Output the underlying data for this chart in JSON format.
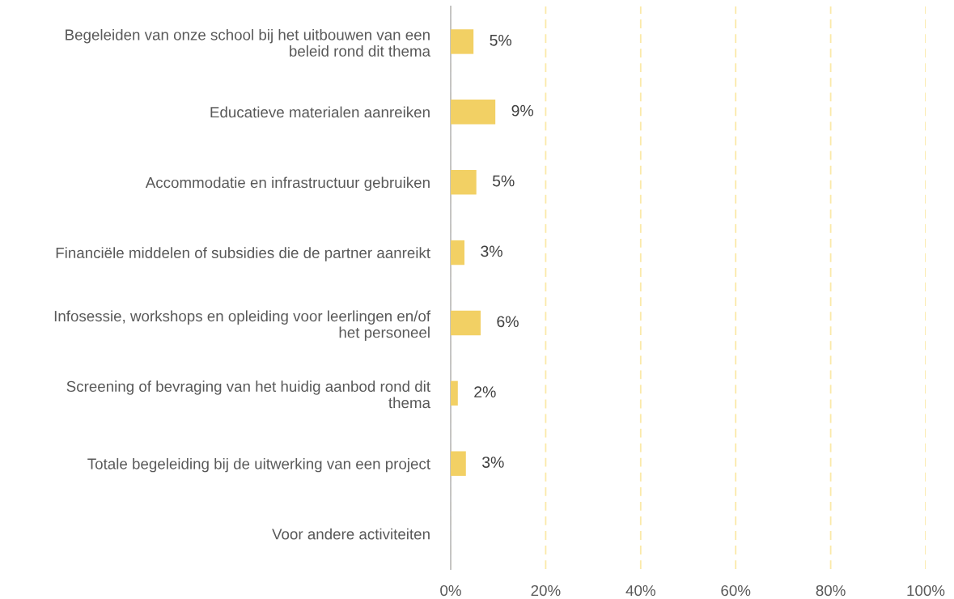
{
  "chart_data": {
    "type": "bar",
    "orientation": "horizontal",
    "categories": [
      "Begeleiden van onze school bij het uitbouwen van een\nbeleid rond dit thema",
      "Educatieve materialen aanreiken",
      "Accommodatie en infrastructuur gebruiken",
      "Financiële middelen of subsidies die de partner aanreikt",
      "Infosessie, workshops en opleiding voor leerlingen en/of\nhet personeel",
      "Screening of bevraging van het huidig aanbod rond dit\nthema",
      "Totale begeleiding bij de uitwerking van een project",
      "Voor andere activiteiten"
    ],
    "values": [
      4.8,
      9.4,
      5.4,
      2.9,
      6.3,
      1.5,
      3.2,
      0
    ],
    "value_labels": [
      "5%",
      "9%",
      "5%",
      "3%",
      "6%",
      "2%",
      "3%",
      null
    ],
    "color": "#f2d064",
    "xlim": [
      0,
      100
    ],
    "xticks": [
      {
        "value": 0,
        "label": "0%"
      },
      {
        "value": 20,
        "label": "20%"
      },
      {
        "value": 40,
        "label": "40%"
      },
      {
        "value": 60,
        "label": "60%"
      },
      {
        "value": 80,
        "label": "80%"
      },
      {
        "value": 100,
        "label": "100%"
      }
    ],
    "grid": "x",
    "line_style": "dashed"
  }
}
